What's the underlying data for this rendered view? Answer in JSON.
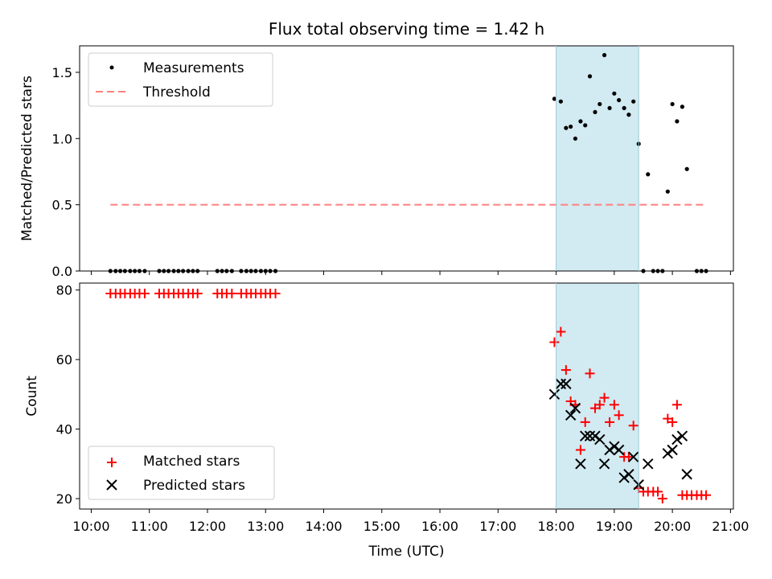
{
  "chart_data": [
    {
      "type": "scatter",
      "title": "Flux total observing time = 1.42 h",
      "ylabel": "Matched/Predicted stars",
      "ylim": [
        0,
        1.7
      ],
      "yticks": [
        0.0,
        0.5,
        1.0,
        1.5
      ],
      "ytick_labels": [
        "0.0",
        "0.5",
        "1.0",
        "1.5"
      ],
      "xlim": [
        9.8,
        21.05
      ],
      "shaded_range": [
        18.0,
        19.42
      ],
      "shaded_color": "#add8e6",
      "legend_position": "upper-left",
      "series": [
        {
          "name": "Measurements",
          "marker": "dot",
          "color": "#000000",
          "x": [
            10.33,
            10.42,
            10.5,
            10.58,
            10.67,
            10.75,
            10.83,
            10.92,
            11.17,
            11.25,
            11.33,
            11.42,
            11.5,
            11.58,
            11.67,
            11.75,
            11.83,
            12.17,
            12.25,
            12.33,
            12.42,
            12.58,
            12.67,
            12.75,
            12.83,
            12.92,
            13.0,
            13.08,
            13.17,
            17.97,
            18.08,
            18.17,
            18.25,
            18.33,
            18.42,
            18.5,
            18.58,
            18.67,
            18.75,
            18.83,
            18.92,
            19.0,
            19.08,
            19.17,
            19.25,
            19.33,
            19.42,
            19.5,
            19.58,
            19.67,
            19.75,
            19.83,
            19.92,
            20.0,
            20.08,
            20.17,
            20.25,
            20.42,
            20.5,
            20.58
          ],
          "y": [
            0,
            0,
            0,
            0,
            0,
            0,
            0,
            0,
            0,
            0,
            0,
            0,
            0,
            0,
            0,
            0,
            0,
            0,
            0,
            0,
            0,
            0,
            0,
            0,
            0,
            0,
            0,
            0,
            0,
            1.3,
            1.28,
            1.08,
            1.09,
            1.0,
            1.13,
            1.1,
            1.47,
            1.2,
            1.26,
            1.63,
            1.23,
            1.34,
            1.29,
            1.23,
            1.18,
            1.28,
            0.96,
            0.0,
            0.73,
            0.0,
            0.0,
            0.0,
            0.6,
            1.26,
            1.13,
            1.24,
            0.77,
            0.0,
            0.0,
            0.0
          ]
        },
        {
          "name": "Threshold",
          "marker": "dashed-line",
          "color": "#ff7f7f",
          "x": [
            10.33,
            20.58
          ],
          "y": [
            0.5,
            0.5
          ]
        }
      ]
    },
    {
      "type": "scatter",
      "xlabel": "Time (UTC)",
      "ylabel": "Count",
      "ylim": [
        17,
        82
      ],
      "yticks": [
        20,
        40,
        60,
        80
      ],
      "ytick_labels": [
        "20",
        "40",
        "60",
        "80"
      ],
      "xlim": [
        9.8,
        21.05
      ],
      "xticks": [
        10,
        11,
        12,
        13,
        14,
        15,
        16,
        17,
        18,
        19,
        20,
        21
      ],
      "xtick_labels": [
        "10:00",
        "11:00",
        "12:00",
        "13:00",
        "14:00",
        "15:00",
        "16:00",
        "17:00",
        "18:00",
        "19:00",
        "20:00",
        "21:00"
      ],
      "shaded_range": [
        18.0,
        19.42
      ],
      "shaded_color": "#add8e6",
      "legend_position": "lower-left",
      "series": [
        {
          "name": "Matched stars",
          "marker": "plus",
          "color": "#ff0000",
          "x": [
            10.33,
            10.42,
            10.5,
            10.58,
            10.67,
            10.75,
            10.83,
            10.92,
            11.17,
            11.25,
            11.33,
            11.42,
            11.5,
            11.58,
            11.67,
            11.75,
            11.83,
            12.17,
            12.25,
            12.33,
            12.42,
            12.58,
            12.67,
            12.75,
            12.83,
            12.92,
            13.0,
            13.08,
            13.17,
            17.97,
            18.08,
            18.17,
            18.25,
            18.33,
            18.42,
            18.5,
            18.58,
            18.67,
            18.75,
            18.83,
            18.92,
            19.0,
            19.08,
            19.17,
            19.25,
            19.33,
            19.42,
            19.5,
            19.58,
            19.67,
            19.75,
            19.83,
            19.92,
            20.0,
            20.08,
            20.17,
            20.25,
            20.33,
            20.42,
            20.5,
            20.58
          ],
          "y": [
            79,
            79,
            79,
            79,
            79,
            79,
            79,
            79,
            79,
            79,
            79,
            79,
            79,
            79,
            79,
            79,
            79,
            79,
            79,
            79,
            79,
            79,
            79,
            79,
            79,
            79,
            79,
            79,
            79,
            65,
            68,
            57,
            48,
            47,
            34,
            42,
            56,
            46,
            47,
            49,
            42,
            47,
            44,
            32,
            32,
            41,
            23,
            22,
            22,
            22,
            22,
            20,
            43,
            42,
            47,
            21,
            21,
            21,
            21,
            21,
            21
          ]
        },
        {
          "name": "Predicted stars",
          "marker": "x",
          "color": "#000000",
          "x": [
            17.97,
            18.08,
            18.17,
            18.25,
            18.33,
            18.42,
            18.5,
            18.58,
            18.67,
            18.75,
            18.83,
            18.92,
            19.0,
            19.08,
            19.17,
            19.25,
            19.33,
            19.42,
            19.58,
            19.92,
            20.0,
            20.08,
            20.17,
            20.25
          ],
          "y": [
            50,
            53,
            53,
            44,
            46,
            30,
            38,
            38,
            38,
            37,
            30,
            34,
            35,
            34,
            26,
            27,
            32,
            24,
            30,
            33,
            34,
            37,
            38,
            27
          ]
        }
      ]
    }
  ]
}
